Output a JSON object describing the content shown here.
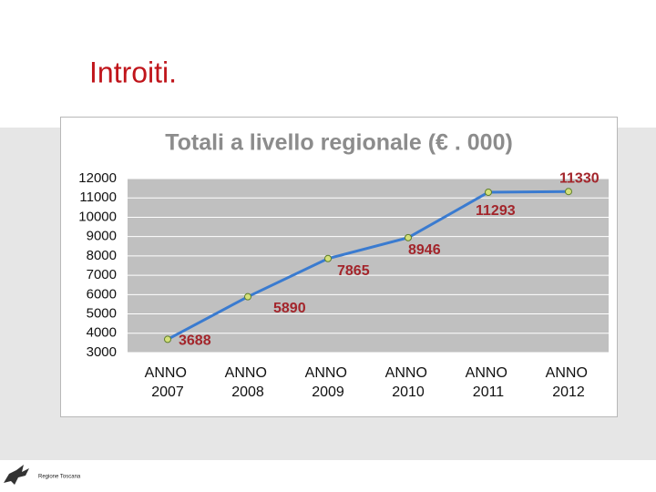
{
  "slide_title": "Introiti.",
  "footer": "Regione Toscana",
  "chart_data": {
    "type": "line",
    "title": "Totali a livello regionale (€ . 000)",
    "categories": [
      "ANNO 2007",
      "ANNO 2008",
      "ANNO 2009",
      "ANNO 2010",
      "ANNO 2011",
      "ANNO 2012"
    ],
    "values": [
      3688,
      5890,
      7865,
      8946,
      11293,
      11330
    ],
    "color": "#3a7bd0",
    "marker_color": "#d4e07a",
    "label_color": "#a3252b",
    "ylim": [
      3000,
      12000
    ],
    "yticks": [
      3000,
      4000,
      5000,
      6000,
      7000,
      8000,
      9000,
      10000,
      11000,
      12000
    ],
    "grid": true
  }
}
